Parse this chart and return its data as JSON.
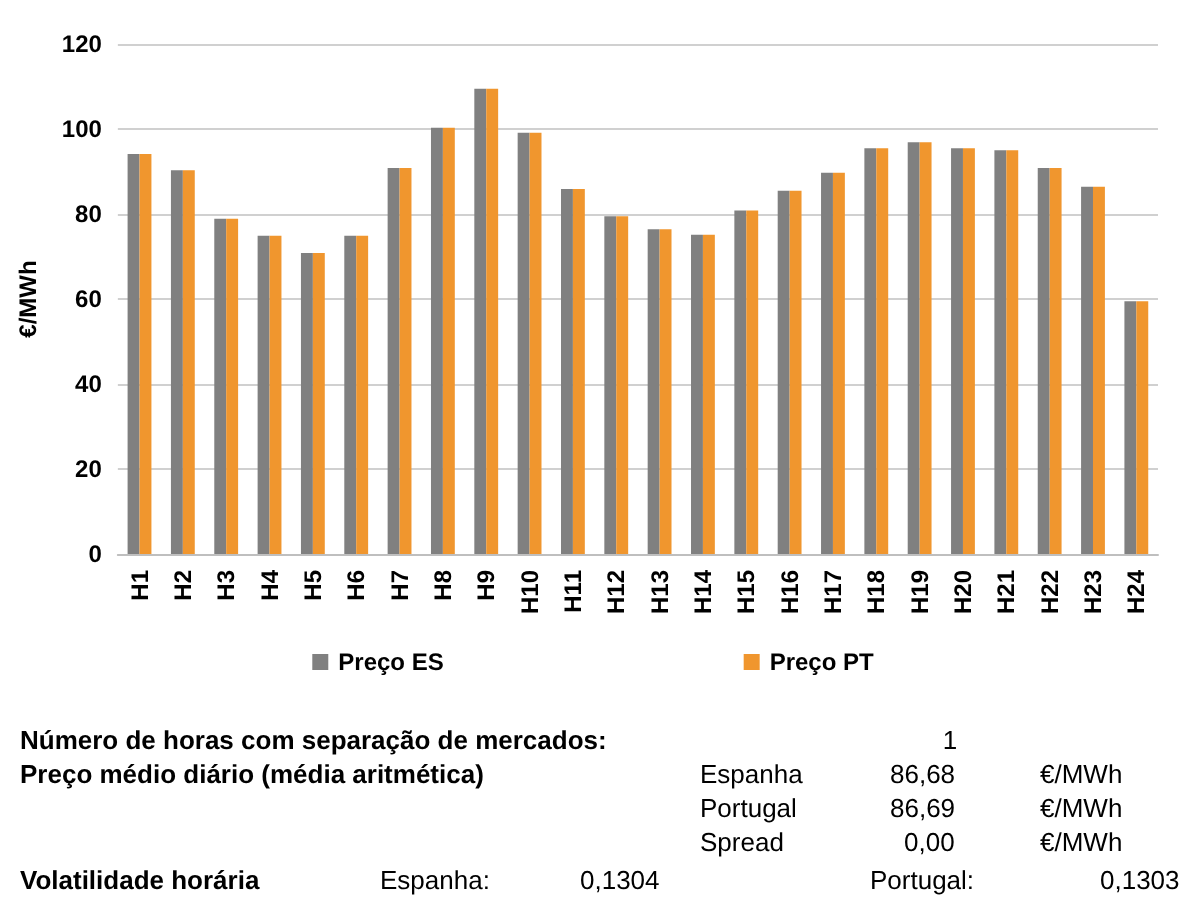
{
  "chart_data": {
    "type": "bar",
    "ylabel": "€/MWh",
    "categories": [
      "H1",
      "H2",
      "H3",
      "H4",
      "H5",
      "H6",
      "H7",
      "H8",
      "H9",
      "H10",
      "H11",
      "H12",
      "H13",
      "H14",
      "H15",
      "H16",
      "H17",
      "H18",
      "H19",
      "H20",
      "H21",
      "H22",
      "H23",
      "H24"
    ],
    "series": [
      {
        "name": "Preço ES",
        "color": "#808080",
        "values": [
          94.1,
          90.3,
          78.9,
          74.9,
          70.8,
          74.9,
          90.8,
          100.3,
          109.5,
          99.1,
          85.9,
          79.5,
          76.4,
          75.1,
          80.8,
          85.5,
          89.7,
          95.5,
          96.9,
          95.5,
          95.0,
          90.8,
          86.4,
          59.5
        ]
      },
      {
        "name": "Preço PT",
        "color": "#f0962e",
        "values": [
          94.1,
          90.3,
          78.9,
          74.9,
          70.8,
          74.9,
          90.8,
          100.3,
          109.5,
          99.1,
          85.9,
          79.5,
          76.4,
          75.1,
          80.8,
          85.5,
          89.7,
          95.5,
          96.9,
          95.5,
          95.0,
          90.8,
          86.4,
          59.5
        ]
      }
    ],
    "ylim": [
      0,
      120
    ],
    "yticks": [
      0,
      20,
      40,
      60,
      80,
      100,
      120
    ],
    "grid": "y",
    "legend": "bottom",
    "annotations": [
      "Número de horas com separação de mercados:",
      "1",
      "Preço médio diário (média aritmética)",
      "Espanha",
      "86,68",
      "€/MWh",
      "Portugal",
      "86,69",
      "€/MWh",
      "Spread",
      "0,00",
      "€/MWh",
      "Volatilidade horária",
      "Espanha:",
      "0,1304",
      "Portugal:",
      "0,1303"
    ]
  }
}
